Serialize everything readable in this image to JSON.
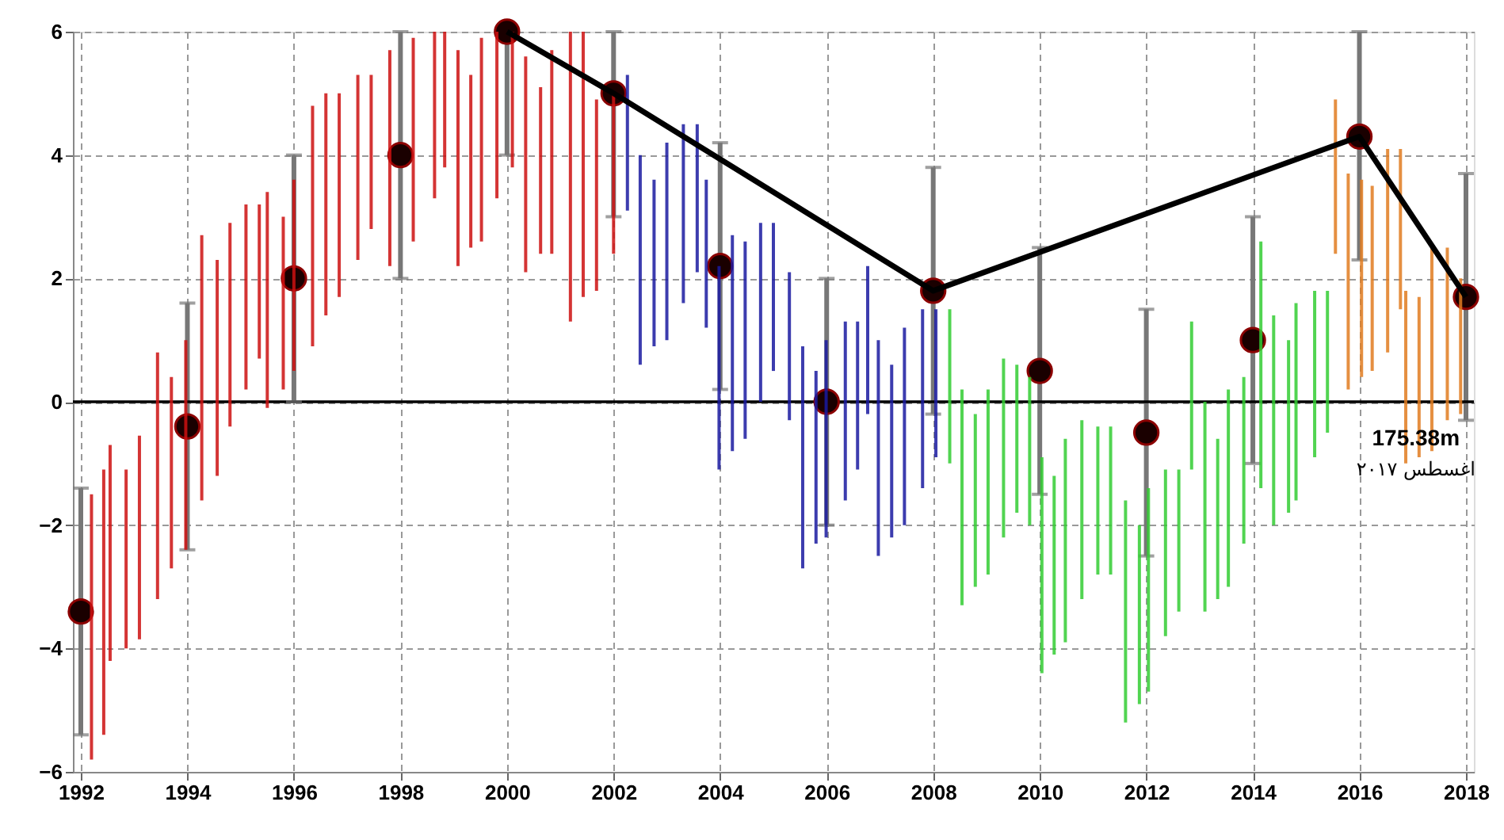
{
  "chart_data": {
    "type": "bar",
    "xlim": [
      1992,
      2018
    ],
    "xticks": [
      1992,
      1994,
      1996,
      1998,
      2000,
      2002,
      2004,
      2006,
      2008,
      2010,
      2012,
      2014,
      2016,
      2018
    ],
    "ylim": [
      -6,
      6
    ],
    "yticks": [
      -6,
      -4,
      -2,
      0,
      2,
      4,
      6
    ],
    "grid": true,
    "ref_lines": [
      {
        "axis": "y",
        "value": 0,
        "color": "#000000"
      }
    ],
    "annotations": [
      {
        "text": "175.38m",
        "x": 2017.06,
        "y": -0.6
      },
      "اغسطس ٢٠١٧"
    ],
    "series": [
      {
        "color": "#cc1111",
        "x": [
          1992.2,
          1992.43,
          1992.55,
          1992.85,
          1993.1,
          1993.44,
          1993.7,
          1993.97,
          1994.27,
          1994.56,
          1994.8,
          1995.1,
          1995.35,
          1995.5,
          1995.8,
          1996.0,
          1996.35,
          1996.6,
          1996.85,
          1997.2,
          1997.45,
          1997.8,
          1998.24,
          1998.64,
          1998.83,
          1999.08,
          1999.32,
          1999.52,
          1999.81,
          2000.1,
          2000.35,
          2000.63,
          2000.84,
          2001.19,
          2001.43,
          2001.68,
          2002.0
        ],
        "base": [
          -5.8,
          -5.4,
          -4.2,
          -4.0,
          -3.85,
          -3.2,
          -2.7,
          -2.4,
          -1.6,
          -1.2,
          -0.4,
          0.2,
          0.7,
          -0.1,
          0.2,
          0.5,
          0.9,
          1.4,
          1.7,
          2.3,
          2.8,
          2.2,
          2.6,
          3.3,
          3.8,
          2.2,
          2.5,
          2.6,
          3.3,
          3.8,
          2.1,
          2.4,
          2.4,
          1.3,
          1.7,
          1.8,
          2.4
        ],
        "values": [
          4.3,
          4.3,
          3.5,
          2.9,
          3.3,
          4.0,
          3.1,
          3.4,
          4.3,
          3.5,
          3.3,
          3.0,
          2.5,
          3.5,
          2.8,
          3.1,
          3.9,
          3.6,
          3.3,
          3.0,
          2.5,
          3.5,
          3.3,
          2.7,
          2.2,
          3.5,
          2.8,
          3.3,
          2.7,
          2.2,
          3.5,
          2.7,
          3.3,
          4.7,
          4.3,
          3.1,
          2.6
        ]
      },
      {
        "color": "#1a1aa0",
        "x": [
          2002.26,
          2002.5,
          2002.76,
          2003.0,
          2003.31,
          2003.57,
          2003.74,
          2003.98,
          2004.23,
          2004.47,
          2004.76,
          2005.0,
          2005.3,
          2005.55,
          2005.8,
          2005.99,
          2006.35,
          2006.58,
          2006.77,
          2006.97,
          2007.22,
          2007.46,
          2007.8,
          2008.05
        ],
        "base": [
          3.1,
          0.6,
          0.9,
          1.0,
          1.6,
          2.1,
          1.2,
          -1.1,
          -0.8,
          -0.6,
          0.0,
          0.5,
          -0.3,
          -2.7,
          -2.3,
          -2.2,
          -1.6,
          -1.1,
          -0.2,
          -2.5,
          -2.2,
          -2.0,
          -1.4,
          -0.9
        ],
        "values": [
          2.2,
          3.4,
          2.7,
          3.2,
          2.9,
          2.4,
          2.4,
          3.3,
          3.5,
          3.2,
          2.9,
          2.4,
          2.4,
          3.6,
          2.8,
          3.2,
          2.9,
          2.4,
          2.4,
          3.5,
          2.8,
          3.2,
          2.9,
          2.4
        ]
      },
      {
        "color": "#33cc33",
        "x": [
          2008.31,
          2008.54,
          2008.79,
          2009.03,
          2009.32,
          2009.57,
          2009.81,
          2010.04,
          2010.27,
          2010.48,
          2010.79,
          2011.09,
          2011.33,
          2011.61,
          2011.87,
          2012.04,
          2012.36,
          2012.61,
          2012.85,
          2013.1,
          2013.34,
          2013.54,
          2013.83,
          2014.15,
          2014.39,
          2014.67,
          2014.81,
          2015.16,
          2015.4
        ],
        "base": [
          -1.0,
          -3.3,
          -3.0,
          -2.8,
          -2.2,
          -1.8,
          -2.0,
          -4.4,
          -4.1,
          -3.9,
          -3.2,
          -2.8,
          -2.8,
          -5.2,
          -4.9,
          -4.7,
          -3.8,
          -3.4,
          -1.1,
          -3.4,
          -3.2,
          -3.0,
          -2.3,
          -1.4,
          -2.0,
          -1.8,
          -1.6,
          -0.9,
          -0.5
        ],
        "values": [
          2.5,
          3.5,
          2.8,
          3.0,
          2.9,
          2.4,
          2.4,
          3.5,
          2.9,
          3.3,
          2.9,
          2.4,
          2.4,
          3.6,
          2.9,
          3.3,
          2.7,
          2.3,
          2.4,
          3.4,
          2.6,
          3.2,
          2.7,
          4.0,
          3.4,
          2.8,
          3.2,
          2.7,
          2.3
        ]
      },
      {
        "color": "#e07b20",
        "x": [
          2015.55,
          2015.79,
          2016.04,
          2016.24,
          2016.53,
          2016.77,
          2016.87,
          2017.12,
          2017.36,
          2017.65,
          2017.9
        ],
        "base": [
          2.4,
          0.2,
          0.4,
          0.5,
          0.8,
          1.5,
          -1.0,
          -0.9,
          -0.8,
          -0.3,
          -0.2
        ],
        "values": [
          2.5,
          3.5,
          3.2,
          3.0,
          3.3,
          2.6,
          2.8,
          2.6,
          3.3,
          2.8,
          2.2
        ]
      },
      {
        "type": "line",
        "line_style": "solid",
        "marker": "none",
        "color": "#000000",
        "x": [
          2000,
          2002,
          2008,
          2016,
          2018
        ],
        "values": [
          6,
          5,
          1.8,
          4.3,
          1.7
        ]
      },
      {
        "type": "scatter",
        "marker": "circle",
        "color": "#1a0000",
        "x": [
          1992,
          1994,
          1996,
          1998,
          2000,
          2002,
          2004,
          2006,
          2008,
          2010,
          2012,
          2014,
          2016,
          2018
        ],
        "values": [
          -3.4,
          -0.4,
          2,
          4,
          6,
          5,
          2.2,
          0,
          1.8,
          0.5,
          -0.5,
          1,
          4.3,
          1.7
        ],
        "errors": [
          2,
          2,
          2,
          2,
          [
            4,
            6
          ],
          [
            3,
            6
          ],
          2,
          2,
          2,
          2,
          2,
          2,
          [
            2.3,
            6
          ],
          2
        ]
      }
    ]
  }
}
